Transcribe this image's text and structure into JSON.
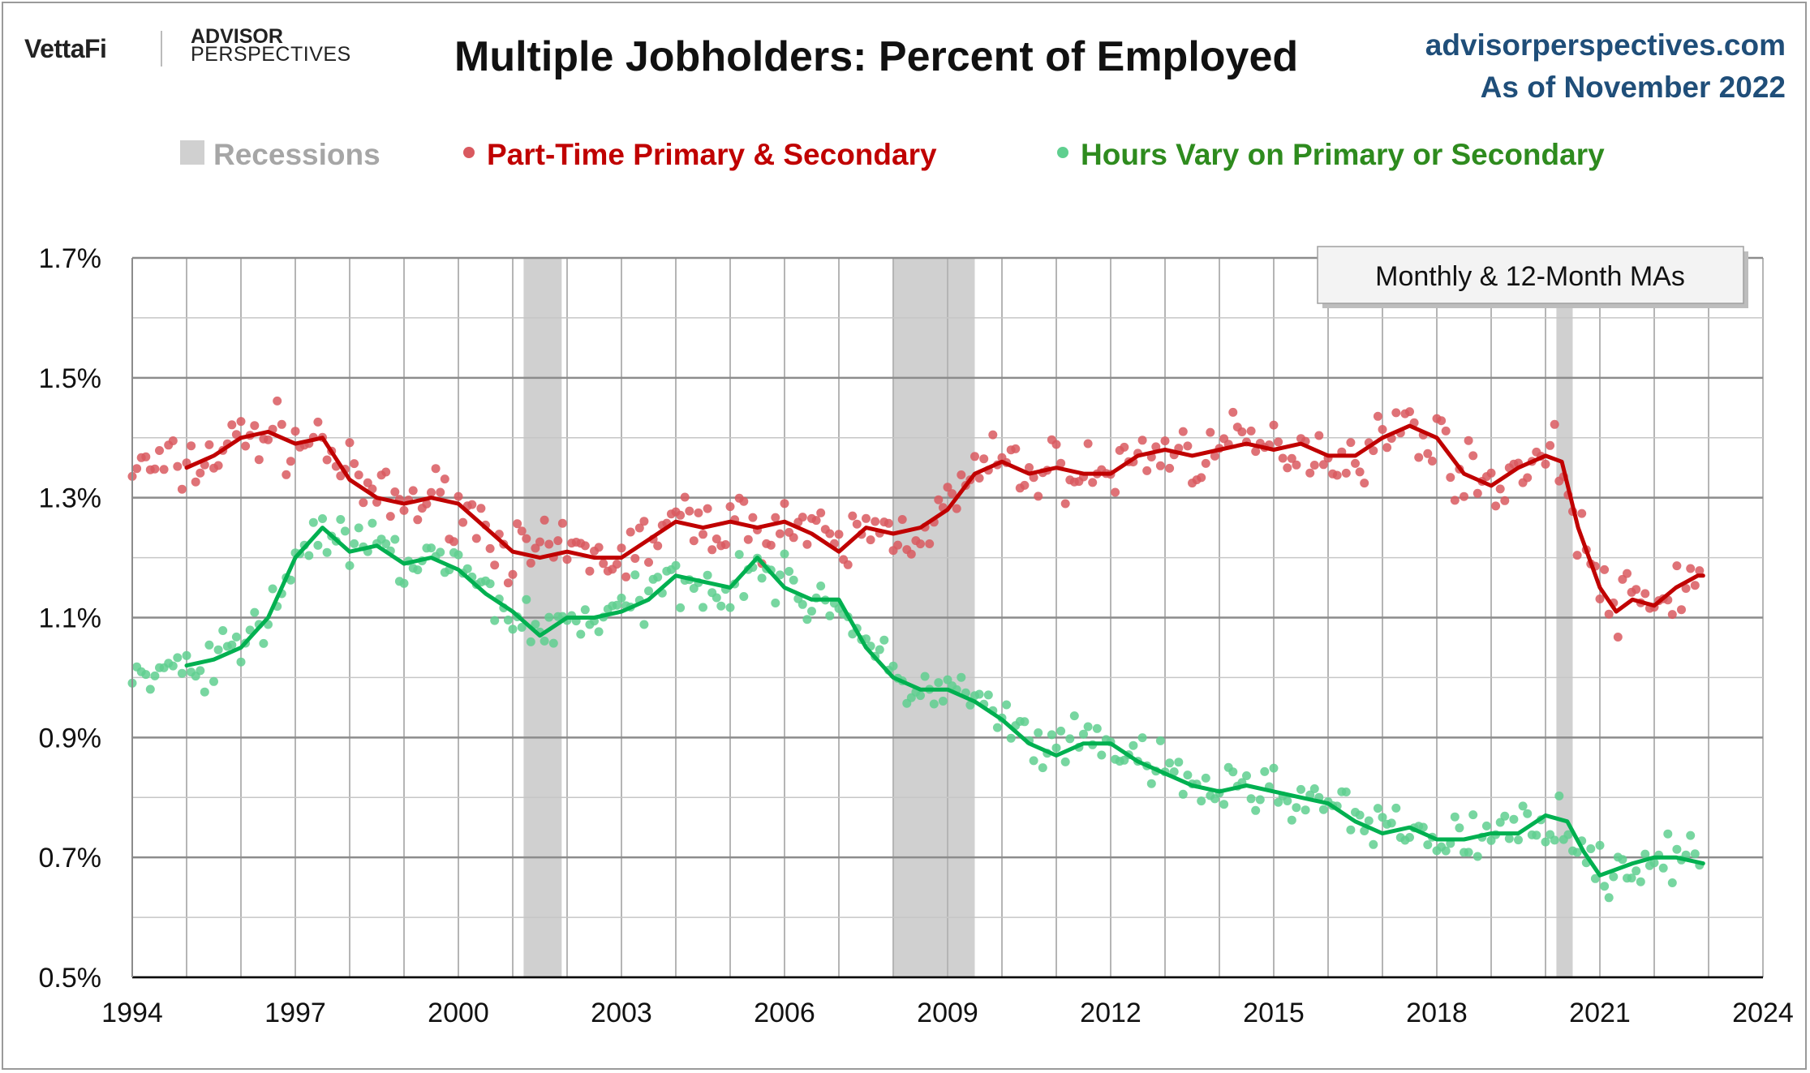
{
  "header": {
    "logo_primary": "VettaFi",
    "logo_secondary_1": "ADVISOR",
    "logo_secondary_2": "PERSPECTIVES",
    "title": "Multiple Jobholders: Percent of Employed",
    "site": "advisorperspectives.com",
    "as_of": "As of November 2022"
  },
  "legend": {
    "recessions": "Recessions",
    "series_a": "Part-Time Primary & Secondary",
    "series_b": "Hours Vary on Primary or Secondary"
  },
  "note": "Monthly & 12-Month MAs",
  "colors": {
    "series_a_line": "#c00000",
    "series_a_dot": "#d9595f",
    "series_b_line": "#00b050",
    "series_b_dot": "#5fcf8f",
    "recession": "#d0d0d0",
    "legend_grey": "#a6a6a6",
    "legend_red": "#c00000",
    "legend_green": "#2e8b1e"
  },
  "chart_data": {
    "type": "line",
    "x_range": [
      1994,
      2024
    ],
    "y_range": [
      0.5,
      1.7
    ],
    "x_ticks": [
      1994,
      1997,
      2000,
      2003,
      2006,
      2009,
      2012,
      2015,
      2018,
      2021,
      2024
    ],
    "x_tick_labels": [
      "1994",
      "1997",
      "2000",
      "2003",
      "2006",
      "2009",
      "2012",
      "2015",
      "2018",
      "2021",
      "2024"
    ],
    "y_ticks": [
      0.5,
      0.7,
      0.9,
      1.1,
      1.3,
      1.5,
      1.7
    ],
    "y_tick_labels": [
      "0.5%",
      "0.7%",
      "0.9%",
      "1.1%",
      "1.3%",
      "1.5%",
      "1.7%"
    ],
    "recessions": [
      [
        2001.2,
        2001.9
      ],
      [
        2008.0,
        2009.5
      ],
      [
        2020.2,
        2020.5
      ]
    ],
    "series": [
      {
        "name": "Part-Time Primary & Secondary",
        "kind": "12-month moving average",
        "points": [
          [
            1995.0,
            1.35
          ],
          [
            1995.5,
            1.37
          ],
          [
            1996.0,
            1.4
          ],
          [
            1996.5,
            1.41
          ],
          [
            1997.0,
            1.39
          ],
          [
            1997.5,
            1.4
          ],
          [
            1998.0,
            1.33
          ],
          [
            1998.5,
            1.3
          ],
          [
            1999.0,
            1.29
          ],
          [
            1999.5,
            1.3
          ],
          [
            2000.0,
            1.29
          ],
          [
            2000.5,
            1.25
          ],
          [
            2001.0,
            1.21
          ],
          [
            2001.5,
            1.2
          ],
          [
            2002.0,
            1.21
          ],
          [
            2002.5,
            1.2
          ],
          [
            2003.0,
            1.2
          ],
          [
            2003.5,
            1.23
          ],
          [
            2004.0,
            1.26
          ],
          [
            2004.5,
            1.25
          ],
          [
            2005.0,
            1.26
          ],
          [
            2005.5,
            1.25
          ],
          [
            2006.0,
            1.26
          ],
          [
            2006.5,
            1.24
          ],
          [
            2007.0,
            1.21
          ],
          [
            2007.5,
            1.25
          ],
          [
            2008.0,
            1.24
          ],
          [
            2008.5,
            1.25
          ],
          [
            2009.0,
            1.28
          ],
          [
            2009.5,
            1.34
          ],
          [
            2010.0,
            1.36
          ],
          [
            2010.5,
            1.34
          ],
          [
            2011.0,
            1.35
          ],
          [
            2011.5,
            1.34
          ],
          [
            2012.0,
            1.34
          ],
          [
            2012.5,
            1.37
          ],
          [
            2013.0,
            1.38
          ],
          [
            2013.5,
            1.37
          ],
          [
            2014.0,
            1.38
          ],
          [
            2014.5,
            1.39
          ],
          [
            2015.0,
            1.38
          ],
          [
            2015.5,
            1.39
          ],
          [
            2016.0,
            1.37
          ],
          [
            2016.5,
            1.37
          ],
          [
            2017.0,
            1.4
          ],
          [
            2017.5,
            1.42
          ],
          [
            2018.0,
            1.4
          ],
          [
            2018.5,
            1.34
          ],
          [
            2019.0,
            1.32
          ],
          [
            2019.5,
            1.35
          ],
          [
            2020.0,
            1.37
          ],
          [
            2020.3,
            1.36
          ],
          [
            2020.6,
            1.25
          ],
          [
            2021.0,
            1.15
          ],
          [
            2021.3,
            1.11
          ],
          [
            2021.6,
            1.13
          ],
          [
            2022.0,
            1.12
          ],
          [
            2022.4,
            1.15
          ],
          [
            2022.8,
            1.17
          ],
          [
            2022.9,
            1.17
          ]
        ]
      },
      {
        "name": "Hours Vary on Primary or Secondary",
        "kind": "12-month moving average",
        "points": [
          [
            1995.0,
            1.02
          ],
          [
            1995.5,
            1.03
          ],
          [
            1996.0,
            1.05
          ],
          [
            1996.5,
            1.1
          ],
          [
            1997.0,
            1.2
          ],
          [
            1997.5,
            1.25
          ],
          [
            1998.0,
            1.21
          ],
          [
            1998.5,
            1.22
          ],
          [
            1999.0,
            1.19
          ],
          [
            1999.5,
            1.2
          ],
          [
            2000.0,
            1.18
          ],
          [
            2000.5,
            1.14
          ],
          [
            2001.0,
            1.11
          ],
          [
            2001.5,
            1.07
          ],
          [
            2002.0,
            1.1
          ],
          [
            2002.5,
            1.1
          ],
          [
            2003.0,
            1.11
          ],
          [
            2003.5,
            1.13
          ],
          [
            2004.0,
            1.17
          ],
          [
            2004.5,
            1.16
          ],
          [
            2005.0,
            1.15
          ],
          [
            2005.5,
            1.2
          ],
          [
            2006.0,
            1.15
          ],
          [
            2006.5,
            1.13
          ],
          [
            2007.0,
            1.13
          ],
          [
            2007.5,
            1.05
          ],
          [
            2008.0,
            1.0
          ],
          [
            2008.5,
            0.98
          ],
          [
            2009.0,
            0.98
          ],
          [
            2009.5,
            0.96
          ],
          [
            2010.0,
            0.93
          ],
          [
            2010.5,
            0.89
          ],
          [
            2011.0,
            0.87
          ],
          [
            2011.5,
            0.89
          ],
          [
            2012.0,
            0.89
          ],
          [
            2012.5,
            0.86
          ],
          [
            2013.0,
            0.84
          ],
          [
            2013.5,
            0.82
          ],
          [
            2014.0,
            0.81
          ],
          [
            2014.5,
            0.82
          ],
          [
            2015.0,
            0.81
          ],
          [
            2015.5,
            0.8
          ],
          [
            2016.0,
            0.79
          ],
          [
            2016.5,
            0.76
          ],
          [
            2017.0,
            0.74
          ],
          [
            2017.5,
            0.75
          ],
          [
            2018.0,
            0.73
          ],
          [
            2018.5,
            0.73
          ],
          [
            2019.0,
            0.74
          ],
          [
            2019.5,
            0.74
          ],
          [
            2020.0,
            0.77
          ],
          [
            2020.4,
            0.76
          ],
          [
            2020.7,
            0.71
          ],
          [
            2021.0,
            0.67
          ],
          [
            2021.3,
            0.68
          ],
          [
            2021.6,
            0.69
          ],
          [
            2022.0,
            0.7
          ],
          [
            2022.4,
            0.7
          ],
          [
            2022.9,
            0.69
          ]
        ]
      }
    ]
  }
}
